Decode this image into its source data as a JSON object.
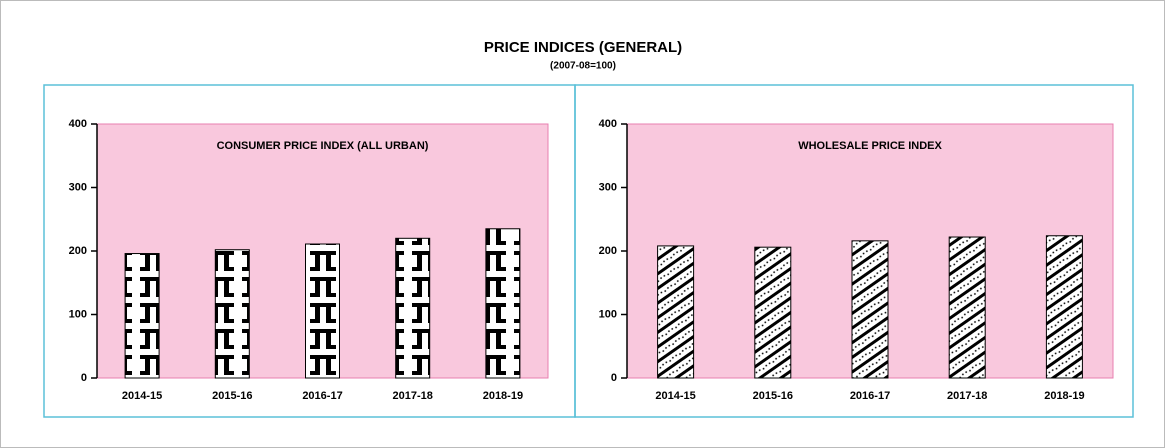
{
  "header": {
    "title": "PRICE INDICES (GENERAL)",
    "subtitle": "(2007-08=100)"
  },
  "chart_data": [
    {
      "type": "bar",
      "title": "CONSUMER PRICE INDEX (ALL URBAN)",
      "categories": [
        "2014-15",
        "2015-16",
        "2016-17",
        "2017-18",
        "2018-19"
      ],
      "values": [
        196,
        202,
        211,
        220,
        235
      ],
      "ylim": [
        0,
        400
      ],
      "yticks": [
        0,
        100,
        200,
        300,
        400
      ],
      "background": "#f9c8dd"
    },
    {
      "type": "bar",
      "title": "WHOLESALE PRICE INDEX",
      "categories": [
        "2014-15",
        "2015-16",
        "2016-17",
        "2017-18",
        "2018-19"
      ],
      "values": [
        208,
        206,
        216,
        222,
        224
      ],
      "ylim": [
        0,
        400
      ],
      "yticks": [
        0,
        100,
        200,
        300,
        400
      ],
      "background": "#f9c8dd"
    }
  ]
}
